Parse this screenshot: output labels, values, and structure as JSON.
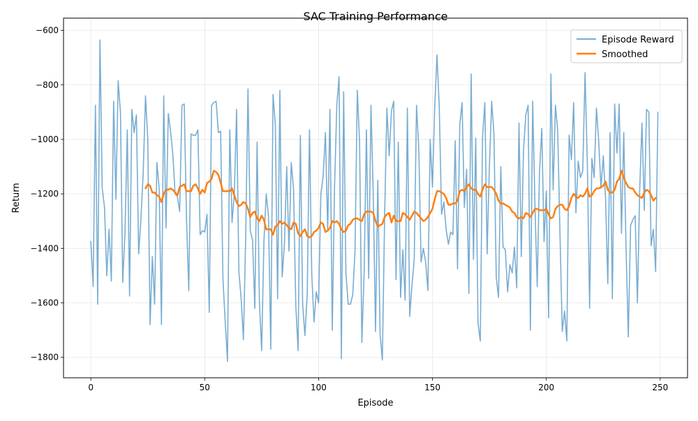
{
  "chart_data": {
    "type": "line",
    "title": "SAC Training Performance",
    "xlabel": "Episode",
    "ylabel": "Return",
    "xlim": [
      -12,
      262
    ],
    "ylim": [
      -1875,
      -555
    ],
    "xticks": [
      0,
      50,
      100,
      150,
      200,
      250
    ],
    "yticks": [
      -1800,
      -1600,
      -1400,
      -1200,
      -1000,
      -800,
      -600
    ],
    "xtick_labels": [
      "0",
      "50",
      "100",
      "150",
      "200",
      "250"
    ],
    "ytick_labels": [
      "−1800",
      "−1600",
      "−1400",
      "−1200",
      "−1000",
      "−800",
      "−600"
    ],
    "grid": true,
    "legend_position": "top-right",
    "series": [
      {
        "name": "Episode Reward",
        "color": "#1f77b4",
        "x_start": 0,
        "values": [
          -1375,
          -1540,
          -875,
          -1605,
          -635,
          -1180,
          -1250,
          -1500,
          -1330,
          -1520,
          -860,
          -1220,
          -785,
          -900,
          -1525,
          -1340,
          -965,
          -1575,
          -890,
          -975,
          -910,
          -1420,
          -1290,
          -1120,
          -840,
          -1000,
          -1680,
          -1430,
          -1605,
          -1085,
          -1180,
          -1680,
          -840,
          -1325,
          -905,
          -970,
          -1055,
          -1200,
          -1210,
          -1265,
          -875,
          -870,
          -1290,
          -1555,
          -980,
          -985,
          -985,
          -965,
          -1350,
          -1335,
          -1340,
          -1275,
          -1635,
          -875,
          -865,
          -860,
          -975,
          -970,
          -1510,
          -1670,
          -1815,
          -965,
          -1305,
          -1200,
          -890,
          -1485,
          -1585,
          -1735,
          -1355,
          -815,
          -1335,
          -1370,
          -1620,
          -1010,
          -1590,
          -1775,
          -1375,
          -1200,
          -1280,
          -1770,
          -835,
          -945,
          -1585,
          -820,
          -1505,
          -1385,
          -1100,
          -1410,
          -1085,
          -1180,
          -1610,
          -1775,
          -985,
          -1605,
          -1720,
          -1570,
          -965,
          -1495,
          -1670,
          -1560,
          -1600,
          -1200,
          -1135,
          -975,
          -1335,
          -890,
          -1700,
          -1180,
          -875,
          -770,
          -1805,
          -825,
          -1490,
          -1605,
          -1605,
          -1570,
          -1410,
          -820,
          -1010,
          -1745,
          -1490,
          -965,
          -1510,
          -875,
          -1200,
          -1705,
          -1150,
          -1715,
          -1810,
          -1280,
          -885,
          -1060,
          -895,
          -860,
          -1515,
          -1010,
          -1580,
          -1405,
          -1590,
          -885,
          -1650,
          -1535,
          -1440,
          -875,
          -1035,
          -1450,
          -1400,
          -1450,
          -1555,
          -1000,
          -1175,
          -880,
          -690,
          -885,
          -1275,
          -1230,
          -1330,
          -1385,
          -1340,
          -1350,
          -1005,
          -1475,
          -945,
          -865,
          -1250,
          -1110,
          -1565,
          -760,
          -1440,
          -995,
          -1675,
          -1740,
          -990,
          -865,
          -1420,
          -1100,
          -860,
          -980,
          -1505,
          -1580,
          -1100,
          -1395,
          -1405,
          -1560,
          -1460,
          -1490,
          -1395,
          -1545,
          -940,
          -1430,
          -1035,
          -910,
          -875,
          -1700,
          -860,
          -1240,
          -1540,
          -1120,
          -960,
          -1375,
          -1190,
          -1655,
          -760,
          -1185,
          -875,
          -970,
          -1350,
          -1705,
          -1630,
          -1740,
          -985,
          -1075,
          -865,
          -1270,
          -1080,
          -1140,
          -1115,
          -755,
          -1085,
          -1620,
          -1070,
          -1140,
          -885,
          -1005,
          -1180,
          -1060,
          -1215,
          -1530,
          -975,
          -1585,
          -870,
          -1050,
          -870,
          -1345,
          -975,
          -1400,
          -1725,
          -1315,
          -1295,
          -1280,
          -1600,
          -1185,
          -940,
          -1260,
          -890,
          -900,
          -1390,
          -1330,
          -1485,
          -900
        ]
      },
      {
        "name": "Smoothed",
        "color": "#ff7f0e",
        "x_start": 24,
        "values": [
          -1180,
          -1165,
          -1170,
          -1195,
          -1195,
          -1205,
          -1210,
          -1230,
          -1200,
          -1185,
          -1185,
          -1180,
          -1185,
          -1195,
          -1205,
          -1175,
          -1170,
          -1165,
          -1190,
          -1190,
          -1190,
          -1170,
          -1165,
          -1180,
          -1200,
          -1185,
          -1195,
          -1160,
          -1155,
          -1145,
          -1115,
          -1120,
          -1130,
          -1160,
          -1190,
          -1190,
          -1190,
          -1190,
          -1180,
          -1205,
          -1230,
          -1245,
          -1240,
          -1230,
          -1235,
          -1255,
          -1285,
          -1270,
          -1265,
          -1290,
          -1300,
          -1280,
          -1295,
          -1330,
          -1330,
          -1330,
          -1350,
          -1320,
          -1315,
          -1300,
          -1310,
          -1305,
          -1315,
          -1325,
          -1330,
          -1305,
          -1310,
          -1345,
          -1355,
          -1340,
          -1330,
          -1355,
          -1360,
          -1355,
          -1340,
          -1335,
          -1325,
          -1305,
          -1310,
          -1340,
          -1335,
          -1325,
          -1300,
          -1305,
          -1300,
          -1310,
          -1330,
          -1340,
          -1335,
          -1315,
          -1310,
          -1295,
          -1290,
          -1290,
          -1295,
          -1300,
          -1275,
          -1265,
          -1265,
          -1265,
          -1270,
          -1300,
          -1320,
          -1315,
          -1310,
          -1285,
          -1275,
          -1270,
          -1305,
          -1280,
          -1300,
          -1300,
          -1300,
          -1270,
          -1275,
          -1285,
          -1295,
          -1280,
          -1265,
          -1270,
          -1280,
          -1290,
          -1300,
          -1295,
          -1285,
          -1270,
          -1255,
          -1220,
          -1190,
          -1190,
          -1195,
          -1200,
          -1215,
          -1240,
          -1240,
          -1235,
          -1235,
          -1225,
          -1190,
          -1185,
          -1190,
          -1175,
          -1165,
          -1180,
          -1185,
          -1185,
          -1200,
          -1210,
          -1185,
          -1165,
          -1175,
          -1175,
          -1175,
          -1185,
          -1200,
          -1225,
          -1235,
          -1235,
          -1240,
          -1245,
          -1250,
          -1265,
          -1270,
          -1285,
          -1290,
          -1285,
          -1290,
          -1270,
          -1275,
          -1285,
          -1270,
          -1255,
          -1255,
          -1260,
          -1260,
          -1260,
          -1255,
          -1275,
          -1290,
          -1285,
          -1255,
          -1245,
          -1240,
          -1240,
          -1255,
          -1260,
          -1245,
          -1215,
          -1200,
          -1210,
          -1215,
          -1205,
          -1210,
          -1200,
          -1180,
          -1210,
          -1205,
          -1190,
          -1180,
          -1180,
          -1175,
          -1170,
          -1155,
          -1185,
          -1195,
          -1195,
          -1185,
          -1155,
          -1145,
          -1115,
          -1140,
          -1160,
          -1175,
          -1180,
          -1180,
          -1195,
          -1205,
          -1210,
          -1215,
          -1195,
          -1185,
          -1190,
          -1205,
          -1225,
          -1215
        ]
      }
    ]
  }
}
